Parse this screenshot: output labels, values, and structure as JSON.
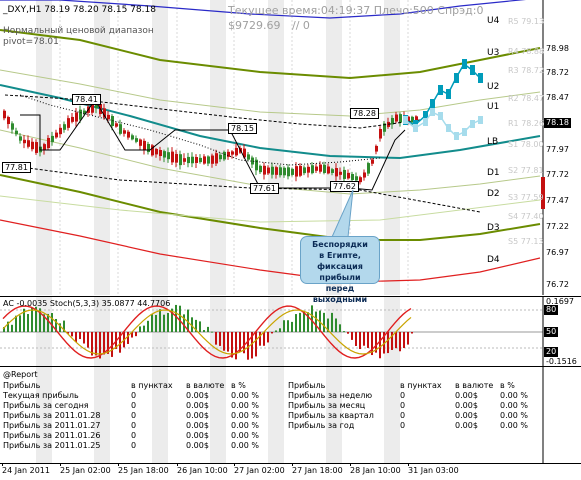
{
  "chart": {
    "symbol_label": "_DXY,H1  78.19 78.20 78.15 78.18",
    "info_line": "Текущее время:04:19:37 Плечо:500 Спрэд:0",
    "balance": "$9729.69",
    "balance_sep": "// 0",
    "range_label": "Нормальный ценовой диапазон",
    "pivot_label": "pivot=78.01",
    "current_price": "78.18",
    "level_labels": [
      "U4",
      "U3",
      "U2",
      "U1",
      "LB",
      "D1",
      "D2",
      "D3",
      "D4"
    ],
    "price_ticks": [
      "78.98",
      "78.72",
      "78.47",
      "78.18",
      "77.97",
      "77.72",
      "77.47",
      "77.22",
      "76.97",
      "76.72"
    ],
    "level_values": [
      "R5 79.13",
      "R4 78.88",
      "R3 78.72",
      "R2 78.47",
      "R1 78.26",
      "S1 78.00",
      "S2 77.81",
      "S3 77.59",
      "S4 77.40",
      "S5 77.13"
    ],
    "candle_labels": [
      "77.81",
      "78.41",
      "78.15",
      "77.61",
      "77.62",
      "78.28"
    ],
    "tooltip_lines": [
      "Беспорядки",
      "в Египте,",
      "фиксация прибыли",
      "перед выходными"
    ],
    "colors": {
      "bull": "#2e8b2e",
      "bear": "#c41010",
      "teal": "#128c8c",
      "olive": "#6b8c00",
      "navy": "#2a2ac8",
      "red": "#e02020",
      "cyan": "#009cba",
      "lightcyan": "#a6dcec"
    }
  },
  "oscillator": {
    "label": "AC -0.0035  Stoch(5,3,3) 35.0877 44.7706",
    "axis_top": "0.1697",
    "axis_bottom": "-0.1516",
    "level_80": "80",
    "level_20": "20",
    "level_hi": "50"
  },
  "report": {
    "title": "@Report",
    "left": {
      "headers": [
        "в пунктах",
        "в валюте",
        "в %"
      ],
      "rows": [
        {
          "label": "Прибыль",
          "pts": "",
          "cur": "",
          "pct": ""
        },
        {
          "label": "Текущая прибыль",
          "pts": "0",
          "cur": "0.00$",
          "pct": "0.00 %"
        },
        {
          "label": "Прибыль за сегодня",
          "pts": "0",
          "cur": "0.00$",
          "pct": "0.00 %"
        },
        {
          "label": "Прибыль за 2011.01.28",
          "pts": "0",
          "cur": "0.00$",
          "pct": "0.00 %"
        },
        {
          "label": "Прибыль за 2011.01.27",
          "pts": "0",
          "cur": "0.00$",
          "pct": "0.00 %"
        },
        {
          "label": "Прибыль за 2011.01.26",
          "pts": "0",
          "cur": "0.00$",
          "pct": "0.00 %"
        },
        {
          "label": "Прибыль за 2011.01.25",
          "pts": "0",
          "cur": "0.00$",
          "pct": "0.00 %"
        }
      ]
    },
    "right": {
      "headers": [
        "в пунктах",
        "в валюте",
        "в %"
      ],
      "rows": [
        {
          "label": "Прибыль",
          "pts": "",
          "cur": "",
          "pct": ""
        },
        {
          "label": "Прибыль за неделю",
          "pts": "0",
          "cur": "0.00$",
          "pct": "0.00 %"
        },
        {
          "label": "Прибыль за месяц",
          "pts": "0",
          "cur": "0.00$",
          "pct": "0.00 %"
        },
        {
          "label": "Прибыль за квартал",
          "pts": "0",
          "cur": "0.00$",
          "pct": "0.00 %"
        },
        {
          "label": "Прибыль за год",
          "pts": "0",
          "cur": "0.00$",
          "pct": "0.00 %"
        }
      ]
    }
  },
  "time_axis": [
    "24 Jan 2011",
    "25 Jan 02:00",
    "25 Jan 18:00",
    "26 Jan 10:00",
    "27 Jan 02:00",
    "27 Jan 18:00",
    "28 Jan 10:00",
    "31 Jan 03:00"
  ]
}
